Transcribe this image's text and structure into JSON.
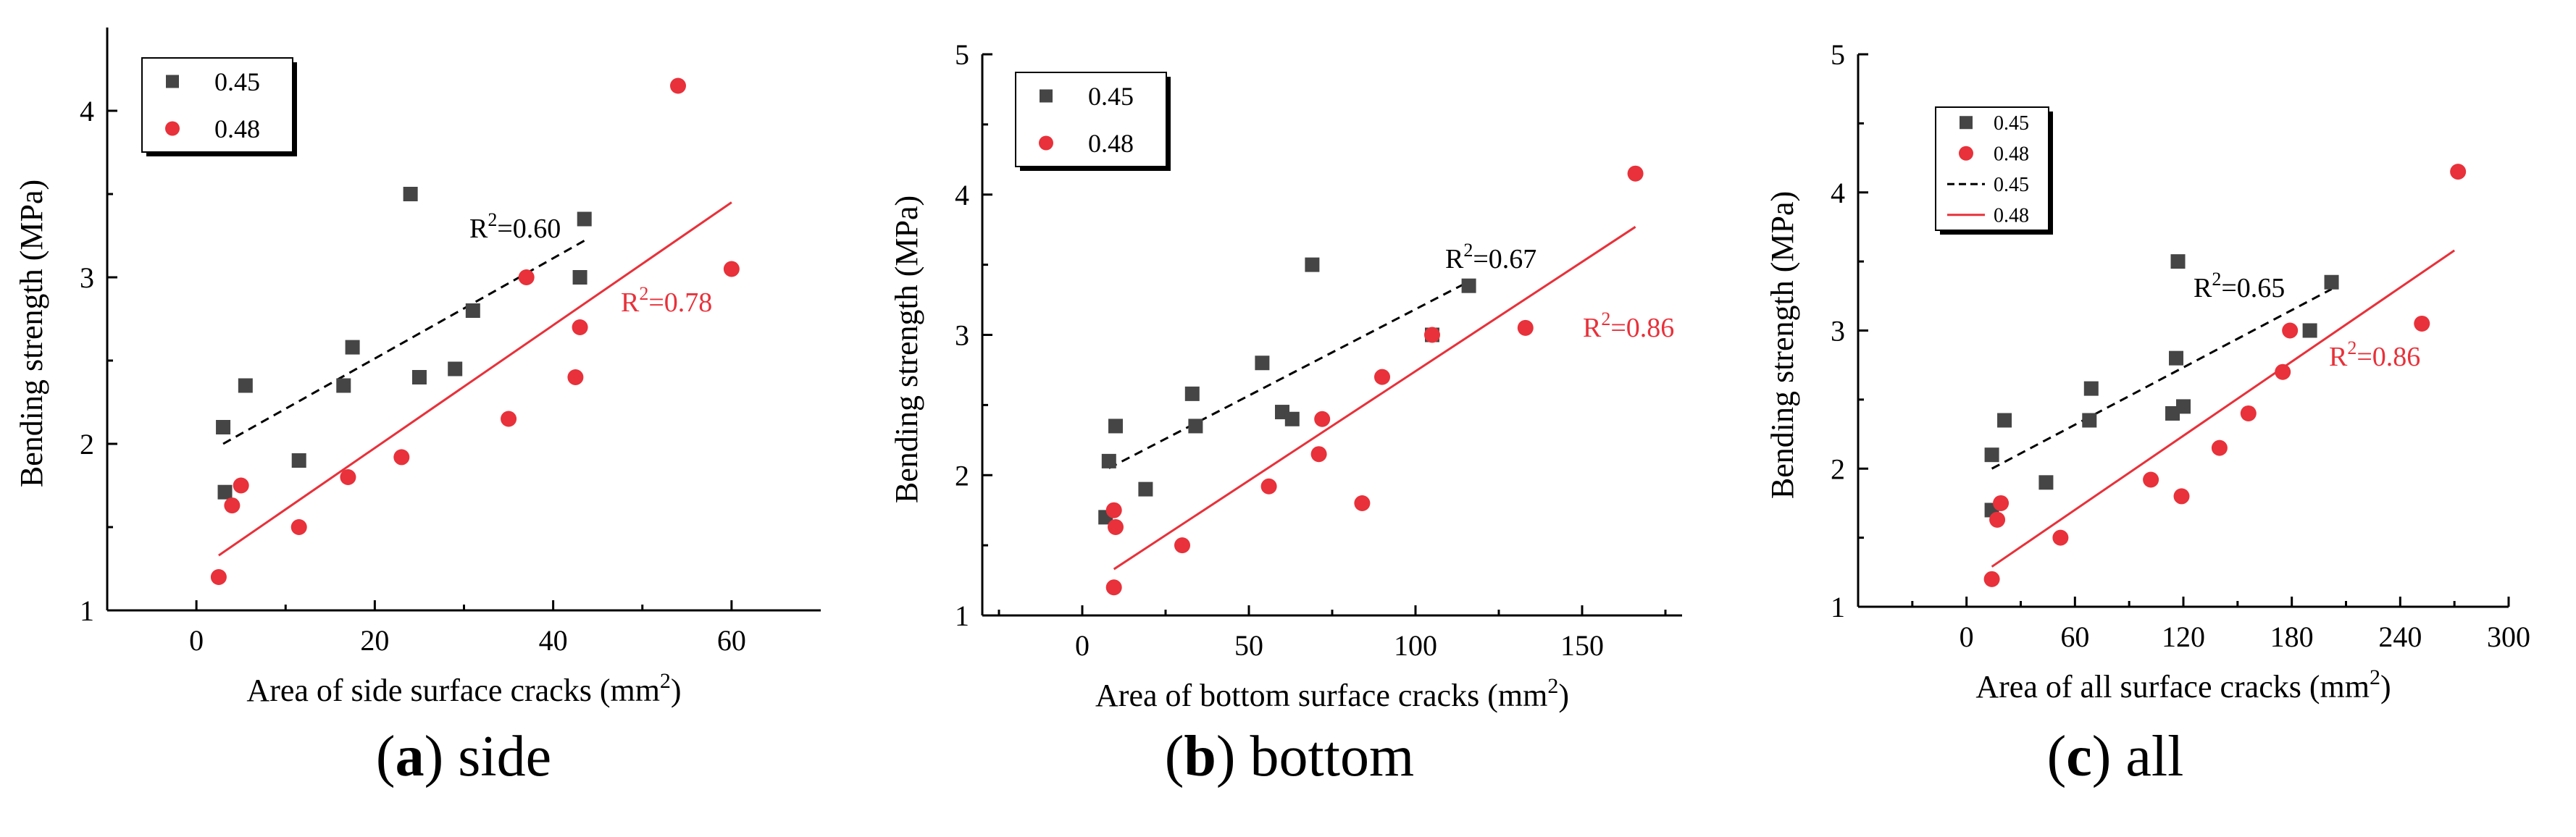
{
  "figure": {
    "captions": [
      {
        "letter": "a",
        "label": "side"
      },
      {
        "letter": "b",
        "label": "bottom"
      },
      {
        "letter": "c",
        "label": "all"
      }
    ]
  },
  "colors": {
    "series_045": "#454545",
    "series_048": "#e8313a",
    "axis": "#000000"
  },
  "chart_data": [
    {
      "type": "scatter",
      "ylabel": "Bending strength (MPa)",
      "xlabel_prefix": "Area of side surface cracks (mm",
      "xlabel_sup": "2",
      "xlabel_suffix": ")",
      "xlim": [
        -10,
        70
      ],
      "ylim": [
        1,
        4.5
      ],
      "xticks": [
        0,
        20,
        40,
        60
      ],
      "yticks": [
        1,
        2,
        3,
        4
      ],
      "xtick_labels": [
        "0",
        "20",
        "40",
        "60"
      ],
      "ytick_labels": [
        "1",
        "2",
        "3",
        "4"
      ],
      "legend": {
        "placement": "top-left",
        "entries": [
          "0.45",
          "0.48"
        ]
      },
      "series": [
        {
          "name": "0.45",
          "marker": "square",
          "color": "#454545",
          "points": [
            [
              3,
              2.1
            ],
            [
              3.2,
              1.71
            ],
            [
              5.5,
              2.35
            ],
            [
              11.5,
              1.9
            ],
            [
              16.5,
              2.35
            ],
            [
              17.5,
              2.58
            ],
            [
              24,
              3.5
            ],
            [
              25,
              2.4
            ],
            [
              29,
              2.45
            ],
            [
              31,
              2.8
            ],
            [
              43,
              3
            ],
            [
              43.5,
              3.35
            ]
          ],
          "fit": {
            "x": [
              3,
              43.5
            ],
            "y": [
              2.0,
              3.22
            ],
            "style": "dashed"
          },
          "r2_label": {
            "prefix": "R",
            "sup": "2",
            "value": "=0.60"
          }
        },
        {
          "name": "0.48",
          "marker": "circle",
          "color": "#e8313a",
          "points": [
            [
              2.5,
              1.2
            ],
            [
              4,
              1.63
            ],
            [
              5,
              1.75
            ],
            [
              11.5,
              1.5
            ],
            [
              17,
              1.8
            ],
            [
              23,
              1.92
            ],
            [
              35,
              2.15
            ],
            [
              37,
              3
            ],
            [
              42.5,
              2.4
            ],
            [
              43,
              2.7
            ],
            [
              54,
              4.15
            ],
            [
              60,
              3.05
            ]
          ],
          "fit": {
            "x": [
              2.5,
              60
            ],
            "y": [
              1.33,
              3.45
            ],
            "style": "solid"
          },
          "r2_label": {
            "prefix": "R",
            "sup": "2",
            "value": "=0.78"
          }
        }
      ]
    },
    {
      "type": "scatter",
      "ylabel": "Bending strength (MPa)",
      "xlabel_prefix": "Area of bottom surface cracks (mm",
      "xlabel_sup": "2",
      "xlabel_suffix": ")",
      "xlim": [
        -30,
        180
      ],
      "ylim": [
        1,
        5
      ],
      "xticks": [
        0,
        50,
        100,
        150
      ],
      "yticks": [
        1,
        2,
        3,
        4,
        5
      ],
      "xtick_labels": [
        "0",
        "50",
        "100",
        "150"
      ],
      "ytick_labels": [
        "1",
        "2",
        "3",
        "4",
        "5"
      ],
      "legend": {
        "placement": "top-left",
        "entries": [
          "0.45",
          "0.48"
        ]
      },
      "series": [
        {
          "name": "0.45",
          "marker": "square",
          "color": "#454545",
          "points": [
            [
              7,
              1.7
            ],
            [
              8,
              2.1
            ],
            [
              10,
              2.35
            ],
            [
              19,
              1.9
            ],
            [
              33,
              2.58
            ],
            [
              34,
              2.35
            ],
            [
              54,
              2.8
            ],
            [
              60,
              2.45
            ],
            [
              63,
              2.4
            ],
            [
              69,
              3.5
            ],
            [
              105,
              3
            ],
            [
              116,
              3.35
            ]
          ],
          "fit": {
            "x": [
              8,
              116
            ],
            "y": [
              2.05,
              3.38
            ],
            "style": "dashed"
          },
          "r2_label": {
            "prefix": "R",
            "sup": "2",
            "value": "=0.67"
          }
        },
        {
          "name": "0.48",
          "marker": "circle",
          "color": "#e8313a",
          "points": [
            [
              9.5,
              1.2
            ],
            [
              9.5,
              1.75
            ],
            [
              10,
              1.63
            ],
            [
              30,
              1.5
            ],
            [
              56,
              1.92
            ],
            [
              71,
              2.15
            ],
            [
              72,
              2.4
            ],
            [
              84,
              1.8
            ],
            [
              90,
              2.7
            ],
            [
              105,
              3
            ],
            [
              133,
              3.05
            ],
            [
              166,
              4.15
            ]
          ],
          "fit": {
            "x": [
              9.5,
              166
            ],
            "y": [
              1.33,
              3.77
            ],
            "style": "solid"
          },
          "r2_label": {
            "prefix": "R",
            "sup": "2",
            "value": "=0.86"
          }
        }
      ]
    },
    {
      "type": "scatter",
      "ylabel": "Bending strength (MPa)",
      "xlabel_prefix": "Area of all surface cracks (mm",
      "xlabel_sup": "2",
      "xlabel_suffix": ")",
      "xlim": [
        -60,
        300
      ],
      "ylim": [
        1,
        5
      ],
      "xticks": [
        0,
        60,
        120,
        180,
        240,
        300
      ],
      "yticks": [
        1,
        2,
        3,
        4,
        5
      ],
      "xtick_labels": [
        "0",
        "60",
        "120",
        "180",
        "240",
        "300"
      ],
      "ytick_labels": [
        "1",
        "2",
        "3",
        "4",
        "5"
      ],
      "legend": {
        "placement": "top-left",
        "entries": [
          "0.45",
          "0.48",
          "0.45",
          "0.48"
        ]
      },
      "series": [
        {
          "name": "0.45",
          "marker": "square",
          "color": "#454545",
          "points": [
            [
              14,
              1.7
            ],
            [
              14,
              2.1
            ],
            [
              21,
              2.35
            ],
            [
              44,
              1.9
            ],
            [
              68,
              2.35
            ],
            [
              69,
              2.58
            ],
            [
              114,
              2.4
            ],
            [
              116,
              2.8
            ],
            [
              117,
              3.5
            ],
            [
              120,
              2.45
            ],
            [
              190,
              3
            ],
            [
              202,
              3.35
            ]
          ],
          "fit": {
            "x": [
              14,
              202
            ],
            "y": [
              2.0,
              3.3
            ],
            "style": "dashed"
          },
          "r2_label": {
            "prefix": "R",
            "sup": "2",
            "value": "=0.65"
          }
        },
        {
          "name": "0.48",
          "marker": "circle",
          "color": "#e8313a",
          "points": [
            [
              14,
              1.2
            ],
            [
              17,
              1.63
            ],
            [
              19,
              1.75
            ],
            [
              52,
              1.5
            ],
            [
              102,
              1.92
            ],
            [
              119,
              1.8
            ],
            [
              140,
              2.15
            ],
            [
              156,
              2.4
            ],
            [
              175,
              2.7
            ],
            [
              179,
              3
            ],
            [
              252,
              3.05
            ],
            [
              272,
              4.15
            ]
          ],
          "fit": {
            "x": [
              14,
              270
            ],
            "y": [
              1.29,
              3.58
            ],
            "style": "solid"
          },
          "r2_label": {
            "prefix": "R",
            "sup": "2",
            "value": "=0.86"
          }
        }
      ]
    }
  ]
}
